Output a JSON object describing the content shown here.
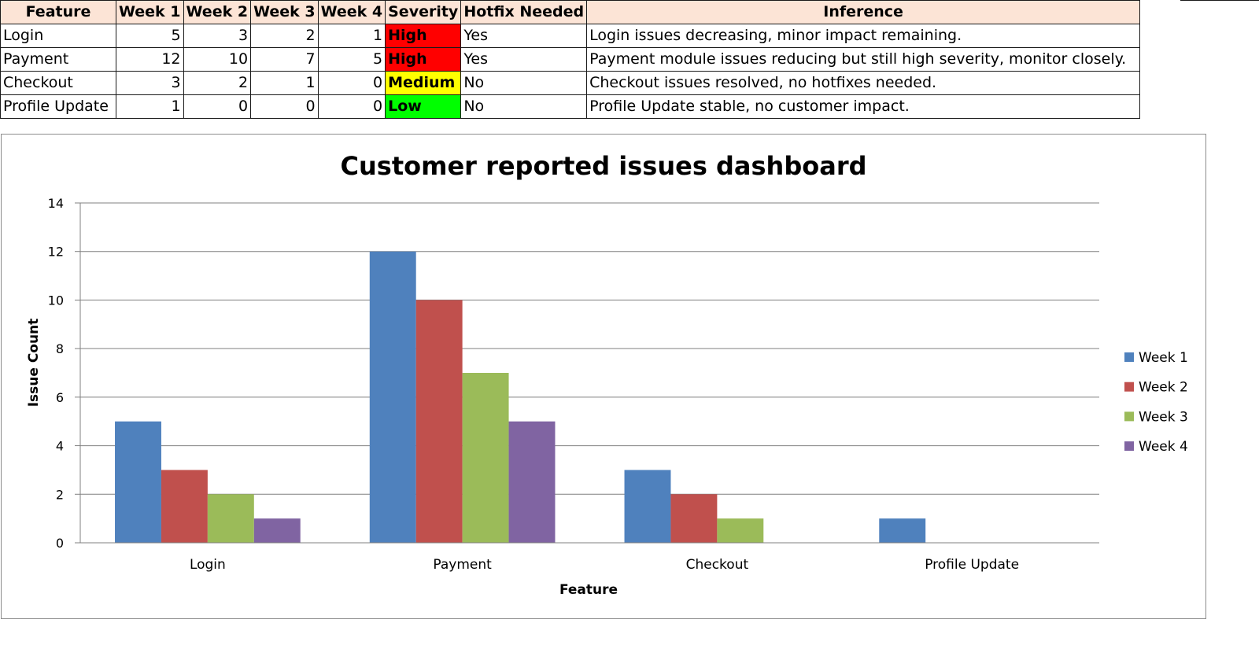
{
  "table": {
    "headers": [
      "Feature",
      "Week 1",
      "Week 2",
      "Week 3",
      "Week 4",
      "Severity",
      "Hotfix Needed",
      "Inference"
    ],
    "rows": [
      {
        "feature": "Login",
        "w1": "5",
        "w2": "3",
        "w3": "2",
        "w4": "1",
        "severity": "High",
        "hotfix": "Yes",
        "inference": "Login issues decreasing, minor impact remaining."
      },
      {
        "feature": "Payment",
        "w1": "12",
        "w2": "10",
        "w3": "7",
        "w4": "5",
        "severity": "High",
        "hotfix": "Yes",
        "inference": "Payment module issues reducing but still high severity, monitor closely."
      },
      {
        "feature": "Checkout",
        "w1": "3",
        "w2": "2",
        "w3": "1",
        "w4": "0",
        "severity": "Medium",
        "hotfix": "No",
        "inference": "Checkout issues resolved, no hotfixes needed."
      },
      {
        "feature": "Profile Update",
        "w1": "1",
        "w2": "0",
        "w3": "0",
        "w4": "0",
        "severity": "Low",
        "hotfix": "No",
        "inference": "Profile Update stable, no customer impact."
      }
    ],
    "severity_colors": {
      "High": "#ff0000",
      "Medium": "#ffff00",
      "Low": "#00ff00"
    },
    "header_color": "#fce4d6"
  },
  "chart_data": {
    "type": "bar",
    "title": "Customer reported issues dashboard",
    "xlabel": "Feature",
    "ylabel": "Issue Count",
    "categories": [
      "Login",
      "Payment",
      "Checkout",
      "Profile Update"
    ],
    "series": [
      {
        "name": "Week 1",
        "values": [
          5,
          12,
          3,
          1
        ],
        "color": "#4f81bd"
      },
      {
        "name": "Week 2",
        "values": [
          3,
          10,
          2,
          0
        ],
        "color": "#c0504d"
      },
      {
        "name": "Week 3",
        "values": [
          2,
          7,
          1,
          0
        ],
        "color": "#9bbb59"
      },
      {
        "name": "Week 4",
        "values": [
          1,
          5,
          0,
          0
        ],
        "color": "#8064a2"
      }
    ],
    "ylim": [
      0,
      14
    ],
    "yticks": [
      0,
      2,
      4,
      6,
      8,
      10,
      12,
      14
    ],
    "grid": true,
    "legend_position": "right"
  }
}
